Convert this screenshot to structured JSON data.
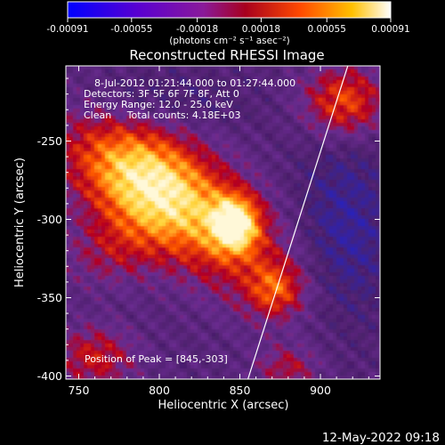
{
  "colorbar": {
    "ticks": [
      "-0.00091",
      "-0.00055",
      "-0.00018",
      "0.00018",
      "0.00055",
      "0.00091"
    ],
    "units_label": "(photons cm⁻² s⁻¹ asec⁻²)",
    "range": [
      -0.00091,
      0.00091
    ],
    "palette": [
      "#0000ff",
      "#6a00c0",
      "#8a1a9a",
      "#a0002a",
      "#ff4a00",
      "#ffd000",
      "#ffffff"
    ]
  },
  "chart_data": {
    "type": "heatmap",
    "title": "Reconstructed RHESSI Image",
    "xlabel": "Heliocentric X (arcsec)",
    "ylabel": "Heliocentric Y (arcsec)",
    "xlim": [
      742,
      937
    ],
    "ylim": [
      -402,
      -202
    ],
    "xticks": [
      750,
      800,
      850,
      900
    ],
    "yticks": [
      -250,
      -300,
      -350,
      -400
    ],
    "peak": [
      845,
      -303
    ],
    "limb_line": [
      [
        855,
        -402
      ],
      [
        917,
        -202
      ]
    ],
    "colors": {
      "bg_dark": "#4b1f6a",
      "bg_mid": "#6a2c90",
      "bg_blue": "#2a24b8",
      "red": "#b6001e",
      "orange": "#ff5a00",
      "yellow": "#ffd43a",
      "white": "#fff8d8"
    }
  },
  "annotations": {
    "time_range": "8-Jul-2012 01:21:44.000 to 01:27:44.000",
    "detectors": "Detectors: 3F 5F 6F 7F 8F, Att 0",
    "energy": "Energy Range: 12.0 - 25.0 keV",
    "clean": "Clean     Total counts: 4.18E+03",
    "peak_text": "Position of Peak = [845,-303]"
  },
  "footer": {
    "timestamp": "12-May-2022 09:18"
  }
}
